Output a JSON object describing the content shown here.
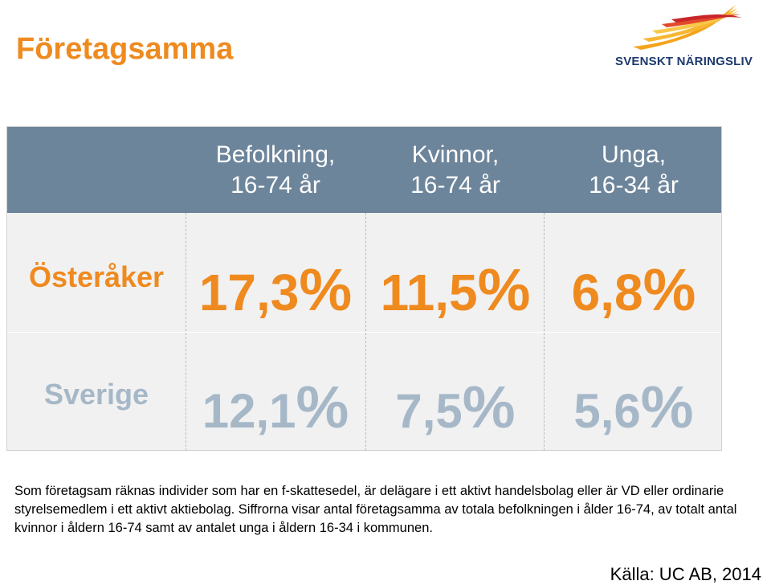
{
  "title": "Företagsamma",
  "logo": {
    "text": "SVENSKT NÄRINGSLIV",
    "icon": "flame-wings-logo"
  },
  "table": {
    "columns": [
      {
        "line1": "Befolkning,",
        "line2": "16-74 år"
      },
      {
        "line1": "Kvinnor,",
        "line2": "16-74 år"
      },
      {
        "line1": "Unga,",
        "line2": "16-34 år"
      }
    ],
    "rows": [
      {
        "label": "Österåker",
        "values": [
          {
            "num": "17,3",
            "pct": "%"
          },
          {
            "num": "11,5",
            "pct": "%"
          },
          {
            "num": "6,8",
            "pct": "%"
          }
        ]
      },
      {
        "label": "Sverige",
        "values": [
          {
            "num": "12,1",
            "pct": "%"
          },
          {
            "num": "7,5",
            "pct": "%"
          },
          {
            "num": "5,6",
            "pct": "%"
          }
        ]
      }
    ]
  },
  "note": "Som företagsam räknas individer som har en f-skattesedel, är delägare i ett aktivt handelsbolag eller är VD eller ordinarie styrelsemedlem i ett aktivt aktiebolag. Siffrorna visar antal företagsamma av totala befolkningen i ålder 16-74, av totalt antal kvinnor i åldern 16-74 samt av antalet unga i åldern 16-34 i kommunen.",
  "source": "Källa: UC AB, 2014",
  "colors": {
    "accent": "#ef8a1f",
    "header": "#6d859b",
    "muted": "#a6b8c8",
    "logo_blue": "#1e3a6e"
  }
}
